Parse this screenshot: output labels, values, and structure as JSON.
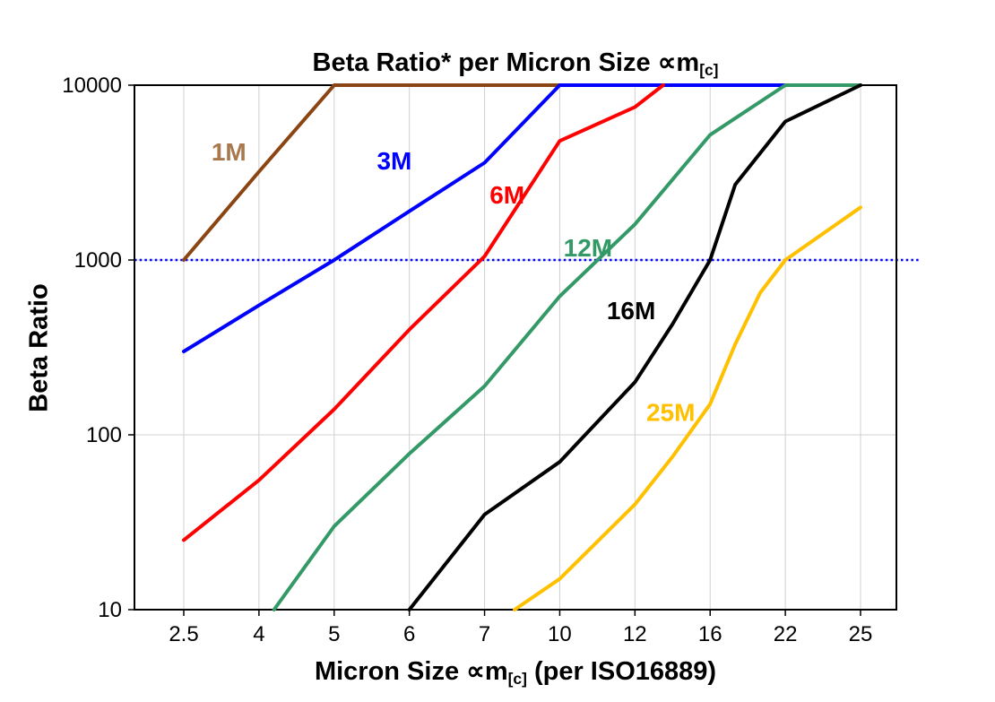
{
  "chart_data": {
    "type": "line",
    "title": {
      "text": "Beta Ratio* per Micron Size ∝m",
      "sub": "[c]"
    },
    "ylabel": "Beta Ratio",
    "xlabel": {
      "text": "Micron Size ∝m",
      "sub": "[c]",
      "after": " (per ISO16889)"
    },
    "x_categories": [
      2.5,
      4,
      5,
      6,
      7,
      10,
      12,
      16,
      22,
      25
    ],
    "x_tick_labels": [
      "2.5",
      "4",
      "5",
      "6",
      "7",
      "10",
      "12",
      "16",
      "22",
      "25"
    ],
    "y_ticks": [
      10,
      100,
      1000,
      10000
    ],
    "y_scale": "log",
    "ylim": [
      10,
      10000
    ],
    "grid": true,
    "background": "#FFFFFF",
    "grid_color": "#D0D0D0",
    "axis_color": "#000000",
    "reference_line": {
      "y": 1000,
      "color": "#0000FF",
      "style": "dotted"
    },
    "legend_position": "inline-labels",
    "series": [
      {
        "name": "1M",
        "color": "#8B4513",
        "label_color": "#A8784E",
        "label_pos": [
          3.4,
          3700
        ],
        "points": [
          [
            2.5,
            1000
          ],
          [
            4,
            3200
          ],
          [
            5,
            10000
          ],
          [
            10,
            10000
          ]
        ]
      },
      {
        "name": "3M",
        "color": "#0000FF",
        "label_color": "#0000FF",
        "label_pos": [
          5.8,
          3300
        ],
        "points": [
          [
            2.5,
            300
          ],
          [
            4,
            550
          ],
          [
            5,
            1000
          ],
          [
            6,
            1900
          ],
          [
            7,
            3600
          ],
          [
            10,
            10000
          ],
          [
            22,
            10000
          ]
        ]
      },
      {
        "name": "6M",
        "color": "#FF0000",
        "label_color": "#FF0000",
        "label_pos": [
          7.9,
          2100
        ],
        "points": [
          [
            2.5,
            25
          ],
          [
            4,
            55
          ],
          [
            5,
            140
          ],
          [
            6,
            400
          ],
          [
            7,
            1050
          ],
          [
            10,
            4800
          ],
          [
            12,
            7500
          ],
          [
            13.5,
            10000
          ]
        ]
      },
      {
        "name": "12M",
        "color": "#339966",
        "label_color": "#339966",
        "label_pos": [
          10.75,
          1050
        ],
        "points": [
          [
            4.2,
            10
          ],
          [
            5,
            30
          ],
          [
            6,
            78
          ],
          [
            7,
            190
          ],
          [
            10,
            620
          ],
          [
            12,
            1600
          ],
          [
            16,
            5200
          ],
          [
            22,
            10000
          ],
          [
            25,
            10000
          ]
        ]
      },
      {
        "name": "16M",
        "color": "#000000",
        "label_color": "#000000",
        "label_pos": [
          11.9,
          460
        ],
        "points": [
          [
            6,
            10
          ],
          [
            7,
            35
          ],
          [
            10,
            70
          ],
          [
            12,
            200
          ],
          [
            14,
            430
          ],
          [
            16,
            1000
          ],
          [
            18,
            2700
          ],
          [
            22,
            6200
          ],
          [
            25,
            10000
          ]
        ]
      },
      {
        "name": "25M",
        "color": "#FFC000",
        "label_color": "#FFC000",
        "label_pos": [
          13.9,
          120
        ],
        "points": [
          [
            8.2,
            10
          ],
          [
            10,
            15
          ],
          [
            12,
            40
          ],
          [
            14,
            75
          ],
          [
            16,
            150
          ],
          [
            18,
            330
          ],
          [
            20,
            650
          ],
          [
            22,
            1000
          ],
          [
            25,
            2000
          ]
        ]
      }
    ]
  }
}
